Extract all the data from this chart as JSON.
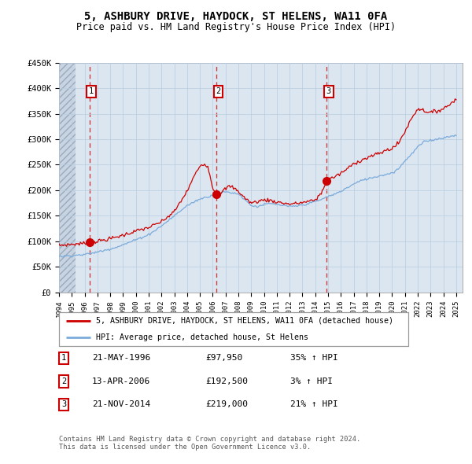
{
  "title": "5, ASHBURY DRIVE, HAYDOCK, ST HELENS, WA11 0FA",
  "subtitle": "Price paid vs. HM Land Registry's House Price Index (HPI)",
  "ylabel_ticks": [
    "£0",
    "£50K",
    "£100K",
    "£150K",
    "£200K",
    "£250K",
    "£300K",
    "£350K",
    "£400K",
    "£450K"
  ],
  "ytick_values": [
    0,
    50000,
    100000,
    150000,
    200000,
    250000,
    300000,
    350000,
    400000,
    450000
  ],
  "xmin": 1994.0,
  "xmax": 2025.5,
  "ymin": 0,
  "ymax": 450000,
  "sale_dates": [
    1996.38,
    2006.28,
    2014.9
  ],
  "sale_prices": [
    97950,
    192500,
    219000
  ],
  "sale_labels": [
    "1",
    "2",
    "3"
  ],
  "legend_red": "5, ASHBURY DRIVE, HAYDOCK, ST HELENS, WA11 0FA (detached house)",
  "legend_blue": "HPI: Average price, detached house, St Helens",
  "table_rows": [
    [
      "1",
      "21-MAY-1996",
      "£97,950",
      "35% ↑ HPI"
    ],
    [
      "2",
      "13-APR-2006",
      "£192,500",
      "3% ↑ HPI"
    ],
    [
      "3",
      "21-NOV-2014",
      "£219,000",
      "21% ↑ HPI"
    ]
  ],
  "footer": "Contains HM Land Registry data © Crown copyright and database right 2024.\nThis data is licensed under the Open Government Licence v3.0.",
  "bg_color": "#dce6f0",
  "grid_color": "#b8cce0",
  "red_line_color": "#cc0000",
  "blue_line_color": "#7aabdb",
  "dot_color": "#cc0000",
  "vline_color": "#cc3333",
  "label_box_edge": "#cc0000",
  "hatch_face": "#c8d4e2",
  "hatch_edge": "#99aabb"
}
